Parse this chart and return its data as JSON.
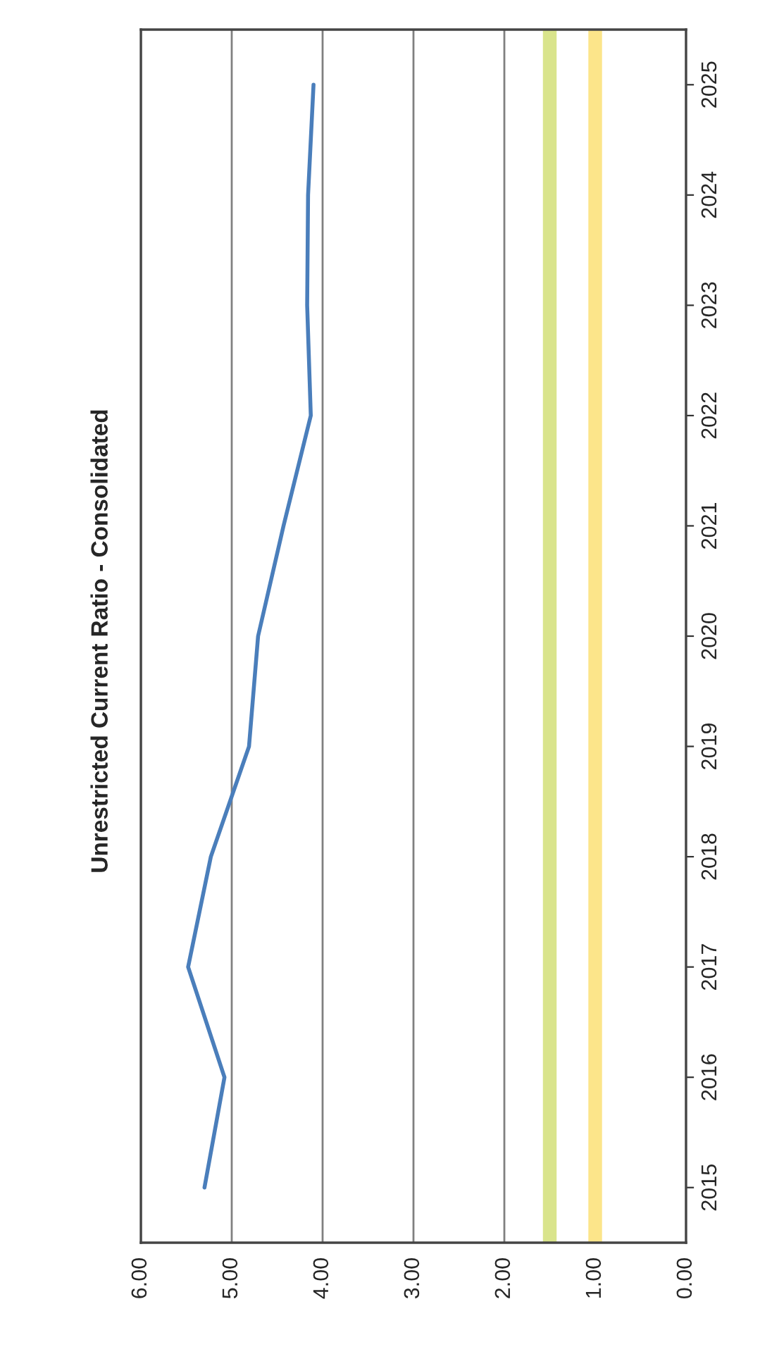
{
  "chart_data": {
    "type": "line",
    "title": "Unrestricted Current Ratio - Consolidated",
    "orientation": "horizontal",
    "categories": [
      "2025",
      "2024",
      "2023",
      "2022",
      "2021",
      "2020",
      "2019",
      "2018",
      "2017",
      "2016",
      "2015"
    ],
    "series": [
      {
        "color": "#4a7ebb",
        "values": [
          4.1,
          4.16,
          4.17,
          4.13,
          4.43,
          4.71,
          4.81,
          5.23,
          5.48,
          5.08,
          5.3
        ]
      }
    ],
    "xlim": [
      6,
      0
    ],
    "xticks": [
      {
        "value": 6,
        "label": "6.00"
      },
      {
        "value": 5,
        "label": "5.00"
      },
      {
        "value": 4,
        "label": "4.00"
      },
      {
        "value": 3,
        "label": "3.00"
      },
      {
        "value": 2,
        "label": "2.00"
      },
      {
        "value": 1,
        "label": "1.00"
      },
      {
        "value": 0,
        "label": "0.00"
      }
    ],
    "ref_lines": [
      {
        "axis": "x",
        "value": 1.5,
        "color": "#d9e48c"
      },
      {
        "axis": "x",
        "value": 1.0,
        "color": "#fce58a"
      }
    ],
    "grid": "x",
    "marker": "none",
    "line_style": "solid"
  }
}
